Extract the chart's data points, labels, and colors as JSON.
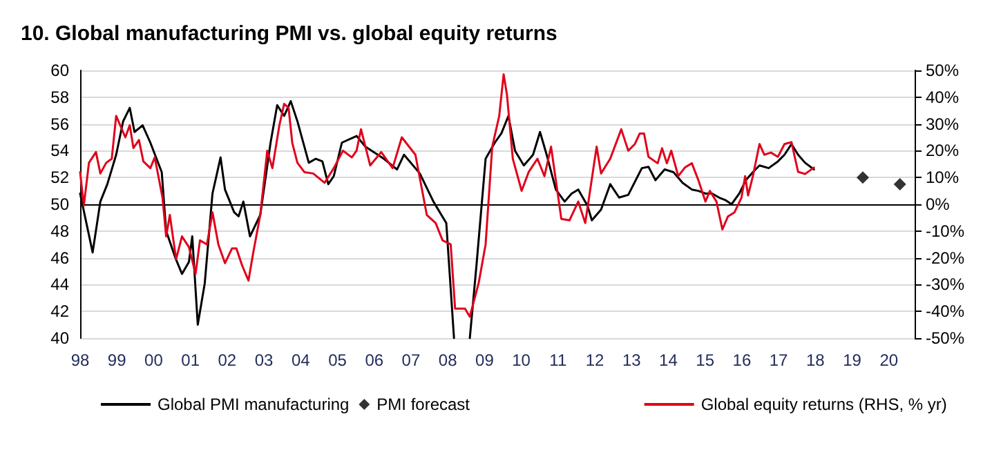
{
  "chart_data": {
    "type": "line",
    "title": "10. Global manufacturing PMI vs. global equity returns",
    "xlim": [
      1998,
      2020.7
    ],
    "xticks": [
      {
        "value": 1998,
        "label": "98"
      },
      {
        "value": 1999,
        "label": "99"
      },
      {
        "value": 2000,
        "label": "00"
      },
      {
        "value": 2001,
        "label": "01"
      },
      {
        "value": 2002,
        "label": "02"
      },
      {
        "value": 2003,
        "label": "03"
      },
      {
        "value": 2004,
        "label": "04"
      },
      {
        "value": 2005,
        "label": "05"
      },
      {
        "value": 2006,
        "label": "06"
      },
      {
        "value": 2007,
        "label": "07"
      },
      {
        "value": 2008,
        "label": "08"
      },
      {
        "value": 2009,
        "label": "09"
      },
      {
        "value": 2010,
        "label": "10"
      },
      {
        "value": 2011,
        "label": "11"
      },
      {
        "value": 2012,
        "label": "12"
      },
      {
        "value": 2013,
        "label": "13"
      },
      {
        "value": 2014,
        "label": "14"
      },
      {
        "value": 2015,
        "label": "15"
      },
      {
        "value": 2016,
        "label": "16"
      },
      {
        "value": 2017,
        "label": "17"
      },
      {
        "value": 2018,
        "label": "18"
      },
      {
        "value": 2019,
        "label": "19"
      },
      {
        "value": 2020,
        "label": "20"
      }
    ],
    "ylim": [
      40,
      60
    ],
    "yticks": [
      40,
      42,
      44,
      46,
      48,
      50,
      52,
      54,
      56,
      58,
      60
    ],
    "y2lim": [
      -50,
      50
    ],
    "y2ticks": [
      {
        "value": -50,
        "label": "-50%"
      },
      {
        "value": -40,
        "label": "-40%"
      },
      {
        "value": -30,
        "label": "-30%"
      },
      {
        "value": -20,
        "label": "-20%"
      },
      {
        "value": -10,
        "label": "-10%"
      },
      {
        "value": 0,
        "label": "0%"
      },
      {
        "value": 10,
        "label": "10%"
      },
      {
        "value": 20,
        "label": "20%"
      },
      {
        "value": 30,
        "label": "30%"
      },
      {
        "value": 40,
        "label": "40%"
      },
      {
        "value": 50,
        "label": "50%"
      }
    ],
    "grid": "y",
    "legend": "bottom",
    "marker": "none",
    "line_style": "solid",
    "ref_lines": [
      {
        "axis": "y",
        "value": 50,
        "color": "#000000"
      }
    ],
    "series": [
      {
        "name": "Global PMI manufacturing",
        "color": "#000000",
        "x": [
          1998.0,
          1998.34,
          1998.55,
          1998.74,
          1998.98,
          1999.17,
          1999.35,
          1999.48,
          1999.7,
          1999.91,
          2000.22,
          2000.34,
          2000.59,
          2000.77,
          2000.96,
          2001.05,
          2001.2,
          2001.39,
          2001.6,
          2001.82,
          2001.94,
          2002.19,
          2002.31,
          2002.44,
          2002.62,
          2002.9,
          2003.18,
          2003.36,
          2003.55,
          2003.73,
          2003.91,
          2004.22,
          2004.41,
          2004.59,
          2004.75,
          2004.9,
          2005.12,
          2005.52,
          2005.76,
          2006.26,
          2006.62,
          2006.81,
          2007.24,
          2007.61,
          2007.96,
          2008.17,
          2008.4,
          2008.6,
          2008.78,
          2009.03,
          2009.28,
          2009.46,
          2009.65,
          2009.83,
          2010.07,
          2010.32,
          2010.51,
          2010.69,
          2010.94,
          2011.18,
          2011.37,
          2011.55,
          2011.8,
          2011.92,
          2012.17,
          2012.42,
          2012.66,
          2012.91,
          2013.28,
          2013.46,
          2013.65,
          2013.9,
          2014.14,
          2014.39,
          2014.64,
          2014.82,
          2015.01,
          2015.19,
          2015.38,
          2015.56,
          2015.72,
          2015.93,
          2016.11,
          2016.3,
          2016.48,
          2016.73,
          2016.98,
          2017.16,
          2017.35,
          2017.53,
          2017.72,
          2017.96
        ],
        "values": [
          50.8,
          46.4,
          50.2,
          51.5,
          53.7,
          56.2,
          57.2,
          55.4,
          55.9,
          54.6,
          52.4,
          48,
          46,
          44.8,
          45.7,
          47.6,
          41,
          44.1,
          50.8,
          53.5,
          51.1,
          49.4,
          49.1,
          50.2,
          47.6,
          49.2,
          54.6,
          57.4,
          56.6,
          57.7,
          56.2,
          53.1,
          53.4,
          53.2,
          51.5,
          52.1,
          54.6,
          55.1,
          54.3,
          53.4,
          52.6,
          53.7,
          52.3,
          50.2,
          48.6,
          40,
          null,
          40,
          45.4,
          53.4,
          54.6,
          55.3,
          56.6,
          54,
          52.9,
          53.7,
          55.4,
          53.7,
          51.1,
          50.2,
          50.8,
          51.1,
          49.9,
          48.8,
          49.6,
          51.5,
          50.5,
          50.7,
          52.7,
          52.8,
          51.8,
          52.6,
          52.4,
          51.6,
          51.1,
          51,
          50.8,
          50.8,
          50.5,
          50.3,
          50,
          50.8,
          51.8,
          52.4,
          52.9,
          52.7,
          53.2,
          53.7,
          54.5,
          53.7,
          53.1,
          52.6
        ]
      },
      {
        "name": "PMI forecast",
        "type": "scatter",
        "marker": "diamond",
        "color": "#000000",
        "x": [
          2019.29,
          2020.3
        ],
        "values": [
          52,
          51.5
        ]
      },
      {
        "name": "Global equity returns (RHS, % yr)",
        "axis": "y2",
        "color": "#e0001b",
        "x": [
          1998.0,
          1998.1,
          1998.24,
          1998.43,
          1998.55,
          1998.71,
          1998.86,
          1998.98,
          1999.23,
          1999.35,
          1999.45,
          1999.6,
          1999.72,
          1999.91,
          2000.03,
          2000.24,
          2000.34,
          2000.44,
          2000.61,
          2000.77,
          2000.96,
          2001.14,
          2001.26,
          2001.45,
          2001.6,
          2001.76,
          2001.94,
          2002.13,
          2002.25,
          2002.41,
          2002.58,
          2002.71,
          2002.9,
          2003.09,
          2003.23,
          2003.42,
          2003.55,
          2003.67,
          2003.77,
          2003.91,
          2004.1,
          2004.34,
          2004.65,
          2004.9,
          2005.15,
          2005.39,
          2005.52,
          2005.64,
          2005.89,
          2006.19,
          2006.5,
          2006.75,
          2007.12,
          2007.43,
          2007.67,
          2007.86,
          2008.08,
          2008.2,
          2008.47,
          2008.6,
          2008.84,
          2009.03,
          2009.21,
          2009.4,
          2009.52,
          2009.61,
          2009.77,
          2010.01,
          2010.2,
          2010.44,
          2010.63,
          2010.81,
          2011.09,
          2011.31,
          2011.55,
          2011.74,
          2012.05,
          2012.17,
          2012.42,
          2012.72,
          2012.91,
          2013.09,
          2013.22,
          2013.34,
          2013.46,
          2013.71,
          2013.83,
          2013.96,
          2014.08,
          2014.27,
          2014.45,
          2014.64,
          2014.82,
          2015.01,
          2015.13,
          2015.31,
          2015.47,
          2015.62,
          2015.8,
          2015.99,
          2016.09,
          2016.17,
          2016.3,
          2016.48,
          2016.61,
          2016.79,
          2016.98,
          2017.16,
          2017.35,
          2017.53,
          2017.72,
          2017.96
        ],
        "values": [
          12,
          -0.5,
          15.5,
          19.5,
          11.5,
          15.5,
          17,
          33,
          25,
          29.5,
          21,
          24,
          16,
          13.5,
          17.5,
          2.5,
          -12,
          -4,
          -20.5,
          -12,
          -16,
          -26,
          -13.5,
          -15,
          -3,
          -15,
          -22,
          -16.5,
          -16.5,
          -23,
          -28.5,
          -18,
          -4,
          20,
          13.5,
          29.5,
          37.5,
          36,
          23,
          15.5,
          12,
          11.5,
          8,
          13.5,
          20,
          17.5,
          20,
          28,
          14.5,
          19.5,
          13.5,
          25,
          18.5,
          -4,
          -7,
          -13.5,
          -15,
          -39,
          -39,
          -42,
          -29.5,
          -15,
          21.5,
          33,
          48.5,
          41,
          17,
          5,
          12,
          17,
          10.5,
          21.5,
          -5.5,
          -6,
          1,
          -7,
          21.5,
          11.5,
          17,
          28,
          20,
          22.5,
          26.4,
          26.4,
          17.7,
          15.3,
          20.9,
          15.3,
          20,
          10.5,
          13.7,
          15.3,
          8.9,
          1,
          5,
          1,
          -9.4,
          -4.6,
          -3,
          2.5,
          10.5,
          3.3,
          10.5,
          22.5,
          18.5,
          19.3,
          17.7,
          22.5,
          23.2,
          12.1,
          11.3,
          13.7
        ]
      }
    ]
  }
}
